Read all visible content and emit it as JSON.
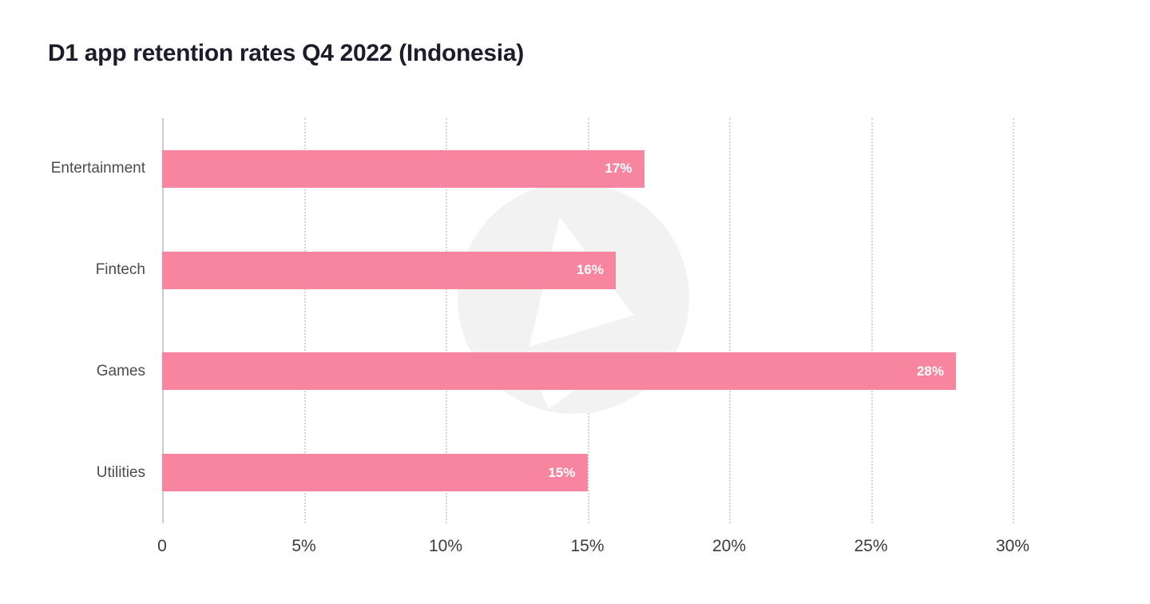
{
  "chart_data": {
    "type": "bar",
    "orientation": "horizontal",
    "title": "D1 app retention rates Q4 2022 (Indonesia)",
    "categories": [
      "Entertainment",
      "Fintech",
      "Games",
      "Utilities"
    ],
    "values": [
      17,
      16,
      28,
      15
    ],
    "value_labels": [
      "17%",
      "16%",
      "28%",
      "15%"
    ],
    "xlabel": "",
    "ylabel": "",
    "xlim": [
      0,
      30
    ],
    "x_ticks": [
      0,
      5,
      10,
      15,
      20,
      25,
      30
    ],
    "x_tick_labels": [
      "0",
      "5%",
      "10%",
      "15%",
      "20%",
      "25%",
      "30%"
    ],
    "grid": "vertical-dotted",
    "legend": "none"
  },
  "colors": {
    "bar": "#f8859f",
    "value_text": "#ffffff",
    "title": "#1d1c2b",
    "category_label": "#4c4c4c",
    "tick_label": "#3a3a40",
    "grid": "#d4d4d4",
    "axis": "#cccccc",
    "watermark": "#f2f2f2"
  },
  "watermark": {
    "icon": "appsflyer-logo-watermark"
  }
}
